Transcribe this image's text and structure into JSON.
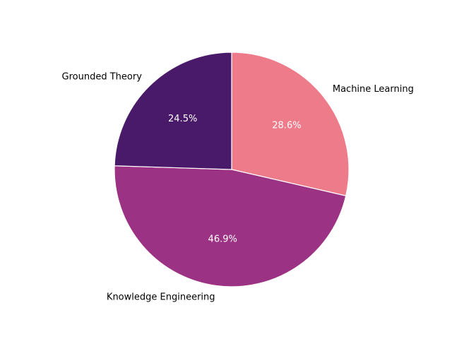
{
  "chart_data": {
    "type": "pie",
    "categories": [
      "Machine Learning",
      "Knowledge Engineering",
      "Grounded Theory"
    ],
    "values": [
      28.6,
      46.9,
      24.5
    ],
    "percent_labels": [
      "28.6%",
      "46.9%",
      "24.5%"
    ],
    "colors": [
      "#ee7b8a",
      "#9c3284",
      "#4a1a6a"
    ],
    "start_angle_deg": 90,
    "direction": "clockwise",
    "edge_color": "#ffffff",
    "title": "",
    "legend": "none"
  }
}
